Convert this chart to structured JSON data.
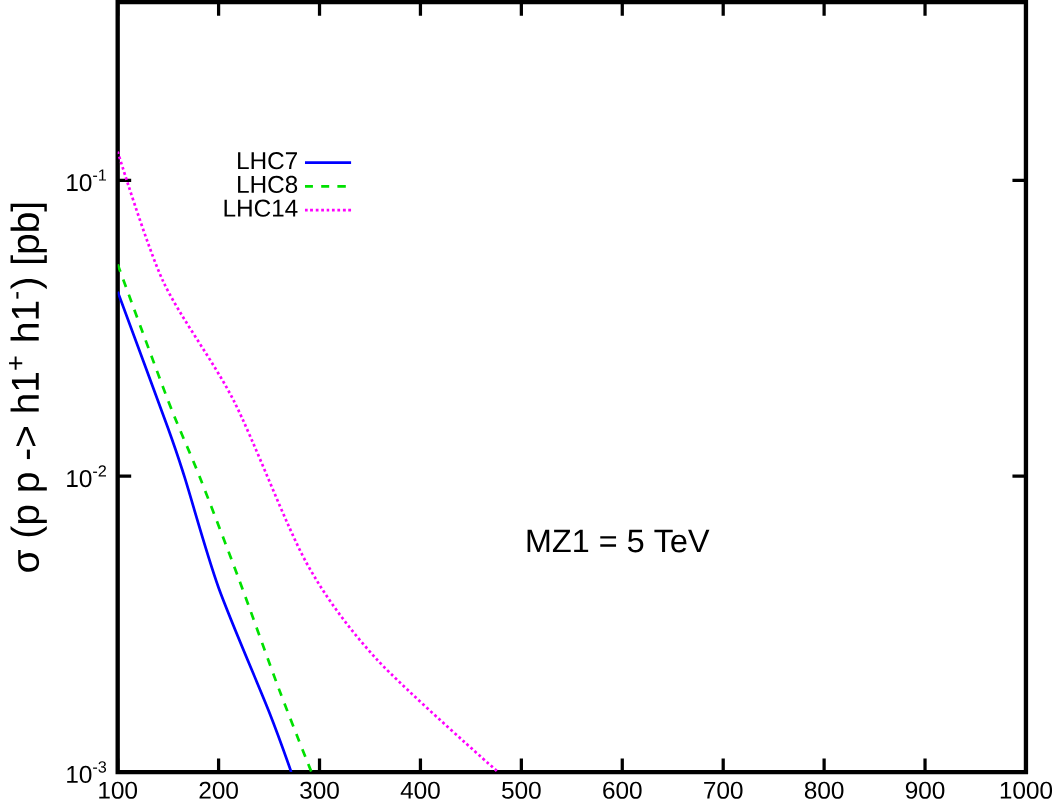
{
  "chart_data": {
    "type": "line",
    "ylabel": "σ (p p -> h1$^{+}$ h1$^{-}$) [pb]",
    "log": "y",
    "legend": "top left",
    "grid": false,
    "xlim": [
      100,
      1000
    ],
    "xticks": [
      100,
      200,
      300,
      400,
      500,
      600,
      700,
      800,
      900,
      1000
    ],
    "ylim": [
      0.001,
      0.4
    ],
    "yticks": [
      {
        "value": 0.001,
        "label": "10$^{-3}$"
      },
      {
        "value": 0.01,
        "label": "10$^{-2}$"
      },
      {
        "value": 0.1,
        "label": "10$^{-1}$"
      }
    ],
    "annotations": [
      "MZ1 = 5 TeV"
    ],
    "series": [
      {
        "name": "LHC7",
        "color": "#0000ff",
        "line_style": "solid",
        "x": [
          100,
          150,
          166,
          200,
          250,
          272
        ],
        "values": [
          0.042,
          0.0145,
          0.01,
          0.0042,
          0.0016,
          0.001
        ]
      },
      {
        "name": "LHC8",
        "color": "#00e000",
        "line_style": "dashed",
        "x": [
          100,
          150,
          181,
          220,
          260,
          292
        ],
        "values": [
          0.052,
          0.018,
          0.01,
          0.0045,
          0.0019,
          0.001
        ]
      },
      {
        "name": "LHC14",
        "color": "#ff00ff",
        "line_style": "dotted",
        "x": [
          100,
          145,
          215,
          287,
          357,
          477
        ],
        "values": [
          0.125,
          0.0456,
          0.018,
          0.0051,
          0.0024,
          0.001
        ]
      }
    ]
  }
}
